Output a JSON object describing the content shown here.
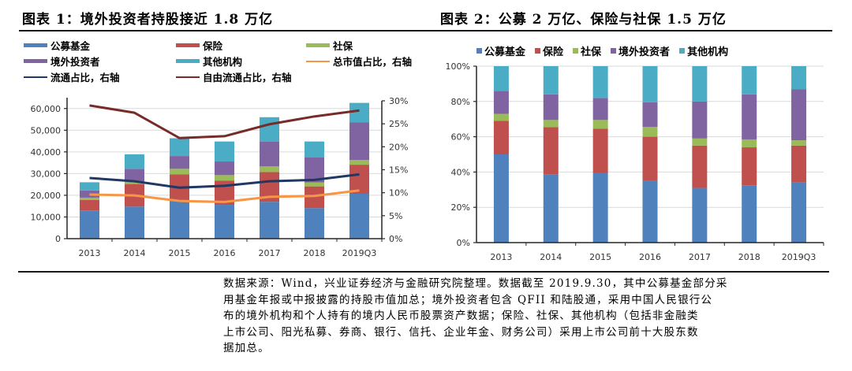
{
  "colors": {
    "public_fund": "#4f81bd",
    "insurance": "#c0504d",
    "social_security": "#9bbb59",
    "foreign": "#8064a2",
    "other": "#4bacc6",
    "total_mcap_line": "#f79646",
    "float_line": "#1f3864",
    "free_float_line": "#772c2a",
    "grid": "#d9d9d9",
    "axis": "#262626"
  },
  "chart_data": [
    {
      "type": "bar",
      "stacked": true,
      "title": "图表 1：境外投资者持股接近 1.8 万亿",
      "xlabel": "",
      "ylabel": "",
      "categories": [
        "2013",
        "2014",
        "2015",
        "2016",
        "2017",
        "2018",
        "2019Q3"
      ],
      "ylim": [
        0,
        65000
      ],
      "yticks": [
        "0",
        "10,000",
        "20,000",
        "30,000",
        "40,000",
        "50,000",
        "60,000"
      ],
      "ytick_values": [
        0,
        10000,
        20000,
        30000,
        40000,
        50000,
        60000
      ],
      "y2lim": [
        0,
        30
      ],
      "y2ticks": [
        "0%",
        "5%",
        "10%",
        "15%",
        "20%",
        "25%",
        "30%"
      ],
      "y2tick_values": [
        0,
        5,
        10,
        15,
        20,
        25,
        30
      ],
      "grid": true,
      "legend_position": "top",
      "series": [
        {
          "name": "公募基金",
          "key": "public_fund",
          "kind": "bar",
          "values": [
            13000,
            14800,
            17400,
            15600,
            17000,
            14100,
            20700
          ]
        },
        {
          "name": "保险",
          "key": "insurance",
          "kind": "bar",
          "values": [
            4800,
            10400,
            12200,
            11100,
            13700,
            10000,
            13400
          ]
        },
        {
          "name": "社保",
          "key": "social_security",
          "kind": "bar",
          "values": [
            1100,
            1100,
            2600,
            2600,
            2600,
            1800,
            2200
          ]
        },
        {
          "name": "境外投资者",
          "key": "foreign",
          "kind": "bar",
          "values": [
            3300,
            5900,
            5900,
            6300,
            11500,
            11500,
            17400
          ]
        },
        {
          "name": "其他机构",
          "key": "other",
          "kind": "bar",
          "values": [
            3800,
            6700,
            8200,
            9200,
            11200,
            7400,
            8900
          ]
        },
        {
          "name": "总市值占比，右轴",
          "key": "total_mcap_line",
          "kind": "line",
          "axis": "right",
          "values": [
            9.6,
            9.4,
            8.2,
            8.0,
            9.1,
            9.3,
            10.5
          ]
        },
        {
          "name": "流通占比，右轴",
          "key": "float_line",
          "kind": "line",
          "axis": "right",
          "values": [
            13.2,
            12.5,
            11.1,
            11.5,
            12.5,
            12.8,
            14.0
          ]
        },
        {
          "name": "自由流通占比，右轴",
          "key": "free_float_line",
          "kind": "line",
          "axis": "right",
          "values": [
            29.0,
            27.4,
            21.9,
            22.3,
            24.9,
            26.6,
            27.9
          ]
        }
      ]
    },
    {
      "type": "bar",
      "stacked": true,
      "percent": true,
      "title": "图表 2：公募 2 万亿、保险与社保 1.5 万亿",
      "xlabel": "",
      "ylabel": "",
      "categories": [
        "2013",
        "2014",
        "2015",
        "2016",
        "2017",
        "2018",
        "2019Q3"
      ],
      "ylim": [
        0,
        100
      ],
      "yticks": [
        "0%",
        "20%",
        "40%",
        "60%",
        "80%",
        "100%"
      ],
      "ytick_values": [
        0,
        20,
        40,
        60,
        80,
        100
      ],
      "grid": true,
      "legend_position": "top",
      "series": [
        {
          "name": "公募基金",
          "key": "public_fund",
          "values": [
            50.0,
            38.5,
            39.5,
            35.0,
            31.0,
            32.5,
            34.0
          ]
        },
        {
          "name": "保险",
          "key": "insurance",
          "values": [
            19.0,
            27.0,
            25.0,
            25.0,
            24.0,
            21.5,
            21.0
          ]
        },
        {
          "name": "社保",
          "key": "social_security",
          "values": [
            4.0,
            4.0,
            5.0,
            5.5,
            4.0,
            4.5,
            3.0
          ]
        },
        {
          "name": "境外投资者",
          "key": "foreign",
          "values": [
            13.0,
            14.5,
            12.5,
            14.0,
            21.0,
            25.5,
            29.0
          ]
        },
        {
          "name": "其他机构",
          "key": "other",
          "values": [
            14.0,
            16.0,
            18.0,
            20.5,
            20.0,
            16.0,
            13.0
          ]
        }
      ]
    }
  ],
  "figure1": {
    "title": "图表 1：境外投资者持股接近 1.8 万亿",
    "legend": [
      {
        "label": "公募基金",
        "key": "public_fund",
        "shape": "bar"
      },
      {
        "label": "保险",
        "key": "insurance",
        "shape": "bar"
      },
      {
        "label": "社保",
        "key": "social_security",
        "shape": "bar"
      },
      {
        "label": "境外投资者",
        "key": "foreign",
        "shape": "bar"
      },
      {
        "label": "其他机构",
        "key": "other",
        "shape": "bar"
      },
      {
        "label": "总市值占比，右轴",
        "key": "total_mcap_line",
        "shape": "line"
      },
      {
        "label": "流通占比，右轴",
        "key": "float_line",
        "shape": "line"
      },
      {
        "label": "自由流通占比，右轴",
        "key": "free_float_line",
        "shape": "line"
      }
    ]
  },
  "figure2": {
    "title": "图表 2：公募 2 万亿、保险与社保 1.5 万亿",
    "legend": [
      {
        "label": "公募基金",
        "key": "public_fund"
      },
      {
        "label": "保险",
        "key": "insurance"
      },
      {
        "label": "社保",
        "key": "social_security"
      },
      {
        "label": "境外投资者",
        "key": "foreign"
      },
      {
        "label": "其他机构",
        "key": "other"
      }
    ]
  },
  "footnote": {
    "lines": [
      "数据来源：Wind，兴业证券经济与金融研究院整理。数据截至 2019.9.30，其中公募基金部分采",
      "用基金年报或中报披露的持股市值加总；境外投资者包含 QFII 和陆股通，采用中国人民银行公",
      "布的境外机构和个人持有的境内人民币股票资产数据；保险、社保、其他机构（包括非金融类",
      "上市公司、阳光私募、券商、银行、信托、企业年金、财务公司）采用上市公司前十大股东数",
      "据加总。"
    ]
  }
}
